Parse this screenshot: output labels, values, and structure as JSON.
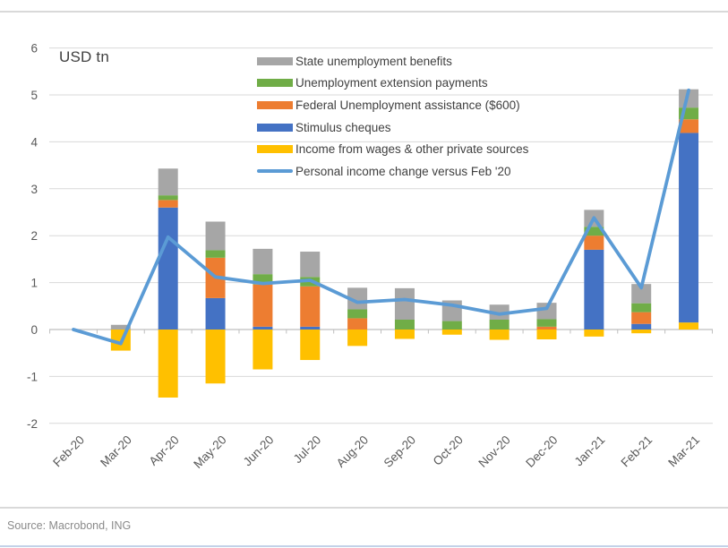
{
  "footer": {
    "source": "Source: Macrobond, ING"
  },
  "chart_data": {
    "type": "bar",
    "variant": "stacked-bars-with-line-overlay",
    "title": "",
    "unit_label": "USD tn",
    "xlabel": "",
    "ylabel": "USD tn",
    "ylim": [
      -2,
      6
    ],
    "ytick_step": 1,
    "grid": true,
    "legend_position": "top-inside",
    "categories": [
      "Feb-20",
      "Mar-20",
      "Apr-20",
      "May-20",
      "Jun-20",
      "Jul-20",
      "Aug-20",
      "Sep-20",
      "Oct-20",
      "Nov-20",
      "Dec-20",
      "Jan-21",
      "Feb-21",
      "Mar-21"
    ],
    "series": [
      {
        "name": "State unemployment benefits",
        "color": "#a6a6a6",
        "values": [
          0,
          0.1,
          0.57,
          0.61,
          0.54,
          0.54,
          0.46,
          0.67,
          0.44,
          0.32,
          0.35,
          0.36,
          0.41,
          0.39
        ]
      },
      {
        "name": "Unemployment extension payments",
        "color": "#70ad47",
        "values": [
          0,
          0,
          0.1,
          0.16,
          0.22,
          0.2,
          0.19,
          0.21,
          0.18,
          0.21,
          0.16,
          0.19,
          0.19,
          0.25
        ]
      },
      {
        "name": "Federal Unemployment assistance ($600)",
        "color": "#ed7d31",
        "values": [
          0,
          0,
          0.16,
          0.86,
          0.9,
          0.86,
          0.24,
          0,
          0,
          0,
          0.06,
          0.3,
          0.25,
          0.29
        ]
      },
      {
        "name": "Stimulus cheques",
        "color": "#4472c4",
        "values": [
          0,
          0,
          2.6,
          0.67,
          0.06,
          0.06,
          0,
          0,
          0,
          0,
          0,
          1.7,
          0.12,
          4.04
        ]
      },
      {
        "name": "Income from wages & other private sources",
        "color": "#ffc000",
        "values": [
          0,
          -0.45,
          -1.45,
          -1.15,
          -0.85,
          -0.65,
          -0.35,
          -0.2,
          -0.11,
          -0.22,
          -0.21,
          -0.15,
          -0.08,
          0.15
        ]
      }
    ],
    "line_series": {
      "name": "Personal income change versus Feb '20",
      "color": "#5b9bd5",
      "values": [
        0,
        -0.3,
        1.97,
        1.12,
        0.98,
        1.05,
        0.58,
        0.64,
        0.52,
        0.33,
        0.45,
        2.38,
        0.89,
        5.1
      ]
    }
  }
}
